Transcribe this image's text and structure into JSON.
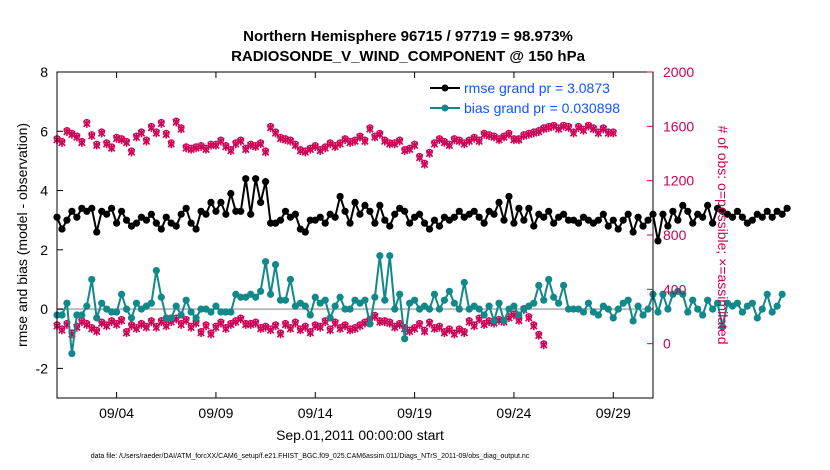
{
  "chart_data": {
    "type": "line",
    "title": "Northern Hemisphere 96715 / 97719 = 98.973%",
    "subtitle": "RADIOSONDE_V_WIND_COMPONENT @ 150 hPa",
    "xlabel": "Sep.01,2011 00:00:00 start",
    "ylabel": "rmse and bias (model - observation)",
    "ylabel_right": "# of obs: o=possible; ×=assimilated",
    "xlim": [
      0,
      30
    ],
    "ylim": [
      -3,
      8
    ],
    "ylim_right": [
      -400,
      2000
    ],
    "x_ticks": [
      {
        "x": 3,
        "label": "09/04"
      },
      {
        "x": 8,
        "label": "09/09"
      },
      {
        "x": 13,
        "label": "09/14"
      },
      {
        "x": 18,
        "label": "09/19"
      },
      {
        "x": 23,
        "label": "09/24"
      },
      {
        "x": 28,
        "label": "09/29"
      }
    ],
    "y_ticks": [
      "-2",
      "0",
      "2",
      "4",
      "6",
      "8"
    ],
    "y_ticks_right": [
      "0",
      "400",
      "800",
      "1200",
      "1600",
      "2000"
    ],
    "series": [
      {
        "name": "rmse grand pr = 3.0873",
        "axis": "left",
        "color": "#000000",
        "step": 0.25,
        "values": [
          3.1,
          2.7,
          3.0,
          3.3,
          3.1,
          3.4,
          3.3,
          3.4,
          2.6,
          3.3,
          3.2,
          3.4,
          2.9,
          3.3,
          3.0,
          2.8,
          2.9,
          3.1,
          3.0,
          3.2,
          2.9,
          2.7,
          3.1,
          2.9,
          2.8,
          3.2,
          3.4,
          2.9,
          2.7,
          3.3,
          3.2,
          3.6,
          3.3,
          3.6,
          3.2,
          3.9,
          3.3,
          3.3,
          4.4,
          3.2,
          4.4,
          3.6,
          4.3,
          2.9,
          2.9,
          3.0,
          3.3,
          3.1,
          3.2,
          2.7,
          2.6,
          3.0,
          3.0,
          3.1,
          2.9,
          3.2,
          3.1,
          3.8,
          3.3,
          2.9,
          3.6,
          3.2,
          3.5,
          3.3,
          2.9,
          3.5,
          3.0,
          2.8,
          3.2,
          3.4,
          3.3,
          2.9,
          3.1,
          3.2,
          2.9,
          2.7,
          3.0,
          2.8,
          3.1,
          3.0,
          3.1,
          3.3,
          3.1,
          3.2,
          3.3,
          3.1,
          2.9,
          3.3,
          3.2,
          3.6,
          3.0,
          3.8,
          2.9,
          3.4,
          3.0,
          3.4,
          2.8,
          3.2,
          3.1,
          3.3,
          2.9,
          3.1,
          3.2,
          3.0,
          3.0,
          2.9,
          3.1,
          3.0,
          2.9,
          3.0,
          3.2,
          2.8,
          3.0,
          2.7,
          3.0,
          3.2,
          2.6,
          3.1,
          2.8,
          3.0,
          3.2,
          2.3,
          3.2,
          2.8,
          3.3,
          3.0,
          3.5,
          3.3,
          2.9,
          3.2,
          3.1,
          3.5,
          2.9,
          3.4,
          3.3,
          3.2,
          3.1,
          3.3,
          3.1,
          2.9,
          3.0,
          3.2,
          3.1,
          3.3,
          3.1,
          3.3,
          3.2,
          3.4
        ]
      },
      {
        "name": "bias grand pr = 0.030898",
        "axis": "left",
        "color": "#11888a",
        "step": 0.25,
        "values": [
          -0.2,
          -0.2,
          0.2,
          -1.5,
          -0.2,
          -0.2,
          0.1,
          1.0,
          -0.3,
          0.2,
          0.0,
          -0.1,
          -0.1,
          0.5,
          0.0,
          -0.3,
          0.2,
          0.0,
          0.1,
          0.2,
          1.3,
          0.4,
          -0.3,
          -0.3,
          0.1,
          -0.2,
          0.3,
          -0.1,
          -0.3,
          0.0,
          0.0,
          -0.1,
          0.1,
          -0.1,
          -0.1,
          -0.1,
          0.5,
          0.4,
          0.4,
          0.5,
          0.4,
          0.6,
          1.6,
          0.5,
          1.5,
          0.3,
          0.3,
          1.0,
          0.1,
          0.2,
          0.1,
          -0.2,
          0.4,
          0.2,
          0.3,
          -0.3,
          0.1,
          0.4,
          0.0,
          0.0,
          0.3,
          0.2,
          0.3,
          -0.5,
          0.4,
          1.8,
          0.3,
          1.8,
          0.0,
          0.5,
          -1.0,
          0.2,
          0.3,
          0.0,
          0.1,
          0.0,
          0.5,
          0.0,
          0.3,
          0.6,
          0.2,
          0.0,
          0.9,
          0.0,
          0.1,
          0.0,
          -0.2,
          0.1,
          -0.4,
          0.2,
          -0.4,
          0.0,
          0.1,
          -0.2,
          0.0,
          0.1,
          0.2,
          0.8,
          0.3,
          1.0,
          0.4,
          0.2,
          0.8,
          0.0,
          0.0,
          0.0,
          -0.1,
          0.2,
          -0.1,
          -0.2,
          0.1,
          0.0,
          -0.3,
          0.0,
          0.2,
          0.3,
          -0.4,
          0.1,
          -0.2,
          0.0,
          0.5,
          -0.1,
          0.5,
          0.0,
          0.5,
          0.6,
          0.5,
          -0.1,
          0.3,
          0.0,
          -0.2,
          0.3,
          0.0,
          0.2,
          -0.6,
          0.2,
          0.1,
          0.2,
          -0.1,
          0.1,
          0.2,
          -0.3,
          0.0,
          0.5,
          -0.1,
          0.1,
          0.5
        ]
      },
      {
        "name": "possible",
        "axis": "right",
        "marker": "o",
        "color": "#cc0055",
        "step": 0.25,
        "values": [
          1510,
          1490,
          1570,
          1550,
          1530,
          1490,
          1630,
          1540,
          1470,
          1560,
          1480,
          1450,
          1520,
          1510,
          1490,
          1420,
          1530,
          1560,
          1500,
          1600,
          1560,
          1630,
          1550,
          1480,
          1640,
          1590,
          1450,
          1440,
          1450,
          1460,
          1440,
          1470,
          1470,
          1500,
          1460,
          1430,
          1480,
          1500,
          1440,
          1470,
          1460,
          1480,
          1420,
          1600,
          1560,
          1520,
          1510,
          1500,
          1470,
          1430,
          1420,
          1440,
          1460,
          1430,
          1450,
          1480,
          1460,
          1480,
          1510,
          1490,
          1500,
          1530,
          1500,
          1590,
          1530,
          1550,
          1500,
          1480,
          1480,
          1500,
          1430,
          1440,
          1470,
          1380,
          1330,
          1410,
          1480,
          1510,
          1490,
          1470,
          1510,
          1500,
          1480,
          1500,
          1520,
          1500,
          1550,
          1540,
          1530,
          1510,
          1530,
          1550,
          1510,
          1510,
          1540,
          1550,
          1560,
          1570,
          1590,
          1600,
          1610,
          1590,
          1610,
          1600,
          1560,
          1600,
          1580,
          1610,
          1590,
          1560,
          1590,
          1560,
          1560
        ]
      },
      {
        "name": "assimilated",
        "axis": "right",
        "marker": "x",
        "color": "#cc0055",
        "step": 0.25,
        "values": [
          1500,
          1480,
          1560,
          1540,
          1520,
          1480,
          1620,
          1530,
          1460,
          1550,
          1470,
          1440,
          1510,
          1500,
          1480,
          1410,
          1520,
          1550,
          1490,
          1590,
          1550,
          1620,
          1540,
          1470,
          1630,
          1580,
          1440,
          1430,
          1440,
          1450,
          1430,
          1460,
          1460,
          1490,
          1450,
          1420,
          1470,
          1490,
          1430,
          1460,
          1450,
          1470,
          1410,
          1590,
          1550,
          1510,
          1500,
          1490,
          1460,
          1420,
          1410,
          1430,
          1450,
          1420,
          1440,
          1470,
          1450,
          1470,
          1500,
          1480,
          1490,
          1520,
          1490,
          1580,
          1520,
          1540,
          1490,
          1470,
          1470,
          1490,
          1420,
          1430,
          1460,
          1370,
          1320,
          1400,
          1470,
          1500,
          1480,
          1460,
          1500,
          1490,
          1470,
          1490,
          1510,
          1490,
          1540,
          1530,
          1520,
          1500,
          1520,
          1540,
          1500,
          1500,
          1530,
          1540,
          1550,
          1560,
          1580,
          1590,
          1600,
          1580,
          1600,
          1590,
          1550,
          1590,
          1570,
          1600,
          1580,
          1550,
          1580,
          1550,
          1550
        ]
      },
      {
        "name": "possible (lower)",
        "axis": "right",
        "marker": "o",
        "color": "#cc0055",
        "step": 0.25,
        "values": [
          140,
          110,
          150,
          80,
          130,
          170,
          150,
          120,
          100,
          160,
          140,
          170,
          150,
          180,
          90,
          140,
          120,
          150,
          130,
          170,
          130,
          170,
          140,
          170,
          190,
          150,
          180,
          130,
          160,
          90,
          140,
          80,
          130,
          160,
          120,
          150,
          170,
          190,
          150,
          150,
          160,
          120,
          130,
          110,
          140,
          80,
          150,
          120,
          160,
          110,
          130,
          90,
          140,
          130,
          170,
          110,
          160,
          120,
          140,
          110,
          120,
          140,
          160,
          180,
          210,
          170,
          170,
          160,
          130,
          150,
          120,
          100,
          120,
          150,
          100,
          160,
          120,
          130,
          90,
          110,
          80,
          110,
          90,
          170,
          140,
          190,
          150,
          170,
          160,
          180,
          170,
          200,
          220,
          180,
          260,
          200,
          140,
          70,
          0
        ]
      },
      {
        "name": "assimilated (lower)",
        "axis": "right",
        "marker": "x",
        "color": "#cc0055",
        "step": 0.25,
        "values": [
          130,
          100,
          140,
          70,
          120,
          160,
          140,
          110,
          90,
          150,
          130,
          160,
          140,
          170,
          80,
          130,
          110,
          140,
          120,
          160,
          120,
          160,
          130,
          160,
          180,
          140,
          170,
          120,
          150,
          80,
          130,
          70,
          120,
          150,
          110,
          140,
          160,
          180,
          140,
          140,
          150,
          110,
          120,
          100,
          130,
          70,
          140,
          110,
          150,
          100,
          120,
          80,
          130,
          120,
          160,
          100,
          150,
          110,
          130,
          100,
          110,
          130,
          150,
          170,
          200,
          160,
          160,
          150,
          120,
          140,
          110,
          90,
          110,
          140,
          90,
          150,
          110,
          120,
          80,
          100,
          70,
          100,
          80,
          160,
          130,
          180,
          140,
          160,
          150,
          170,
          160,
          190,
          210,
          170,
          250,
          190,
          130,
          60,
          -10
        ]
      }
    ],
    "legend": [
      "rmse grand pr = 3.0873",
      "bias grand pr = 0.030898"
    ],
    "legend_location": "top-right",
    "zero_line": true
  },
  "footnote": "data file: /Users/raeder/DAI/ATM_forcXX/CAM6_setup/f.e21.FHIST_BGC.f09_025.CAM6assim.011/Diags_NTrS_2011-09/obs_diag_output.nc",
  "colors": {
    "rmse": "#000000",
    "bias": "#11888a",
    "obs": "#cc0055",
    "legend_text": "#1155ff"
  }
}
